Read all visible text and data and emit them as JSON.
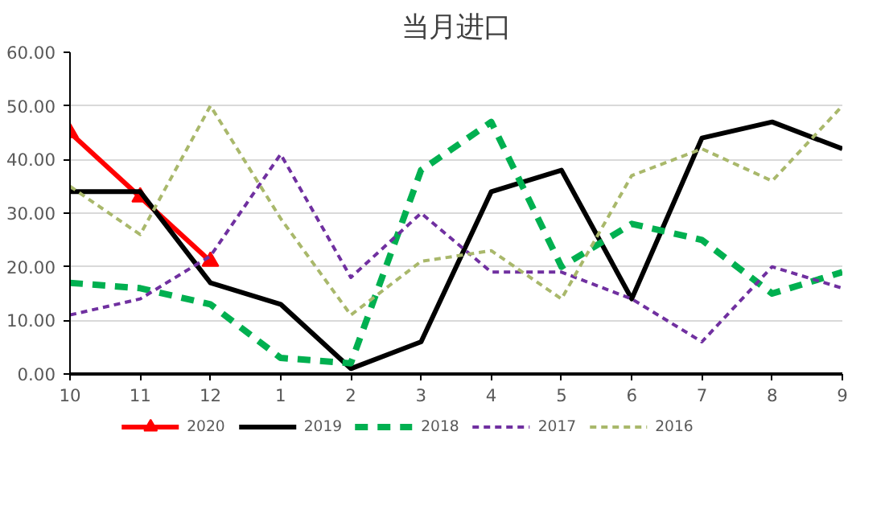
{
  "chart_data": {
    "type": "line",
    "title": "当月进口",
    "categories": [
      "10",
      "11",
      "12",
      "1",
      "2",
      "3",
      "4",
      "5",
      "6",
      "7",
      "8",
      "9"
    ],
    "series": [
      {
        "name": "2020",
        "color": "#ff0000",
        "marker": "triangle",
        "line_style": "solid",
        "values": [
          45,
          33,
          21,
          null,
          null,
          null,
          null,
          null,
          null,
          null,
          null,
          null
        ]
      },
      {
        "name": "2019",
        "color": "#000000",
        "line_style": "solid",
        "values": [
          34,
          34,
          17,
          13,
          1,
          6,
          34,
          38,
          14,
          44,
          47,
          42
        ]
      },
      {
        "name": "2018",
        "color": "#00b050",
        "line_style": "dashed",
        "values": [
          17,
          16,
          13,
          3,
          2,
          38,
          47,
          20,
          28,
          25,
          15,
          19
        ]
      },
      {
        "name": "2017",
        "color": "#7030a0",
        "line_style": "dotted",
        "values": [
          11,
          14,
          22,
          41,
          18,
          30,
          19,
          19,
          14,
          6,
          20,
          16
        ]
      },
      {
        "name": "2016",
        "color": "#a9b86b",
        "line_style": "dotted",
        "values": [
          35,
          26,
          50,
          29,
          11,
          21,
          23,
          14,
          37,
          42,
          36,
          50
        ]
      }
    ],
    "ylim": [
      0,
      60
    ],
    "yticks": [
      {
        "value": 0,
        "label": "0.00"
      },
      {
        "value": 10,
        "label": "10.00"
      },
      {
        "value": 20,
        "label": "20.00"
      },
      {
        "value": 30,
        "label": "30.00"
      },
      {
        "value": 40,
        "label": "40.00"
      },
      {
        "value": 50,
        "label": "50.00"
      },
      {
        "value": 60,
        "label": "60.00"
      }
    ],
    "grid": "y",
    "legend": "bottom"
  }
}
